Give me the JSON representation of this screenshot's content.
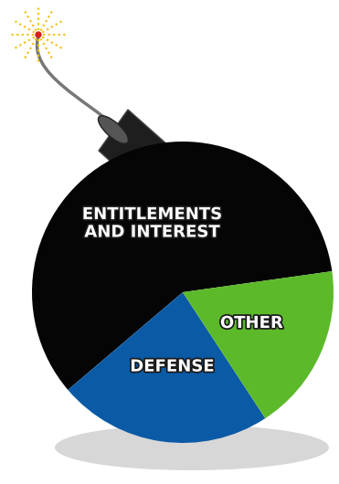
{
  "chart_data": {
    "type": "pie",
    "categories": [
      "ENTITLEMENTS\nAND INTEREST",
      "DEFENSE",
      "OTHER"
    ],
    "values": [
      59,
      23,
      18
    ],
    "colors": [
      "#050505",
      "#0b5aa6",
      "#5cba2a"
    ]
  }
}
